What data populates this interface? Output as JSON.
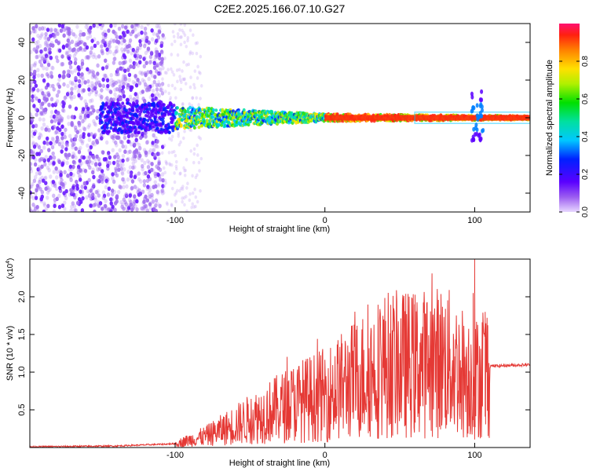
{
  "title": "C2E2.2025.166.07.10.G27",
  "colors": {
    "signal_line": "#e53935",
    "background_dots": "#a06cf0",
    "band_core": "#ff2a10"
  },
  "chart_data": [
    {
      "type": "heatmap",
      "title": "C2E2.2025.166.07.10.G27",
      "xlabel": "Height of straight line (km)",
      "ylabel": "Frequency (Hz)",
      "xlim": [
        -197,
        137
      ],
      "ylim": [
        -50,
        50
      ],
      "xticks": [
        -100,
        0,
        100
      ],
      "yticks": [
        -40,
        -20,
        0,
        20,
        40
      ],
      "grid": false,
      "colorbar": {
        "label": "Normalized spectral amplitude",
        "range": [
          0,
          1
        ],
        "ticks": [
          0.0,
          0.2,
          0.4,
          0.6,
          0.8
        ],
        "tick_labels": [
          "0.0",
          "0.2",
          "0.4",
          "0.6",
          "0.8"
        ],
        "colormap": "rainbow (purple to red)"
      },
      "description_points": [
        {
          "x": -197,
          "spread": 50
        },
        {
          "x": -110,
          "spread": 50
        },
        {
          "x": -100,
          "spread": 6
        },
        {
          "x": 0,
          "spread": 2
        },
        {
          "x": 137,
          "spread": 1
        }
      ]
    },
    {
      "type": "line",
      "xlabel": "Height of straight line (km)",
      "ylabel": "SNR (10 * v/v)",
      "y_multiplier_label": "(x10",
      "y_multiplier_exp": "4",
      "xlim": [
        -197,
        137
      ],
      "ylim": [
        0,
        2.5
      ],
      "xticks": [
        -100,
        0,
        100
      ],
      "yticks": [
        0.5,
        1.0,
        1.5,
        2.0
      ],
      "ytick_labels": [
        "0.5",
        "1.0",
        "1.5",
        "2.0"
      ],
      "grid": false,
      "series": [
        {
          "color": "#e53935",
          "envelope": [
            {
              "x": -197,
              "y": 0.01
            },
            {
              "x": -140,
              "y": 0.02
            },
            {
              "x": -100,
              "y": 0.05
            },
            {
              "x": -80,
              "y": 0.15
            },
            {
              "x": -60,
              "y": 0.3
            },
            {
              "x": -40,
              "y": 0.45
            },
            {
              "x": -20,
              "y": 0.6
            },
            {
              "x": 0,
              "y": 0.7
            },
            {
              "x": 20,
              "y": 0.9
            },
            {
              "x": 40,
              "y": 1.1
            },
            {
              "x": 60,
              "y": 1.1
            },
            {
              "x": 80,
              "y": 1.15
            },
            {
              "x": 100,
              "y": 0.9
            },
            {
              "x": 110,
              "y": 1.08
            },
            {
              "x": 137,
              "y": 1.1
            }
          ],
          "peaks": [
            {
              "x": 60,
              "y": 1.9
            },
            {
              "x": 100,
              "y": 2.5
            },
            {
              "x": 99,
              "y": 2.05
            },
            {
              "x": 107,
              "y": 1.8
            }
          ]
        }
      ]
    }
  ]
}
